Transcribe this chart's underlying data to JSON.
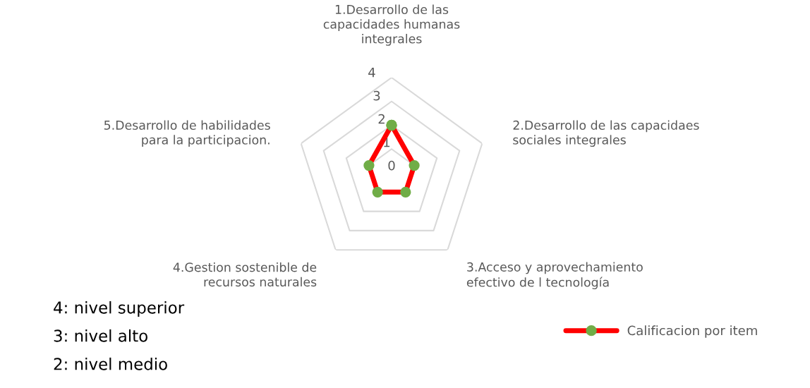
{
  "chart_data": {
    "type": "radar",
    "categories": [
      "1.Desarrollo de las\ncapacidades humanas\nintegrales",
      "2.Desarrollo de las capacidaes\nsociales integrales",
      "3.Acceso y aprovechamiento\nefectivo de l tecnología",
      "4.Gestion sostenible de\nrecursos naturales",
      "5.Desarrollo de habilidades\npara la participacion."
    ],
    "series": [
      {
        "name": "Calificacion por item",
        "color": "#ff0000",
        "values": [
          2,
          1,
          1,
          1,
          1
        ]
      }
    ],
    "ylim": [
      0,
      4
    ],
    "yticks": [
      0,
      1,
      2,
      3,
      4
    ],
    "grid": true,
    "marker": "circle",
    "legend": "bottom right",
    "annotations": [
      "4: nivel superior",
      "3: nivel alto",
      "2: nivel medio"
    ]
  }
}
